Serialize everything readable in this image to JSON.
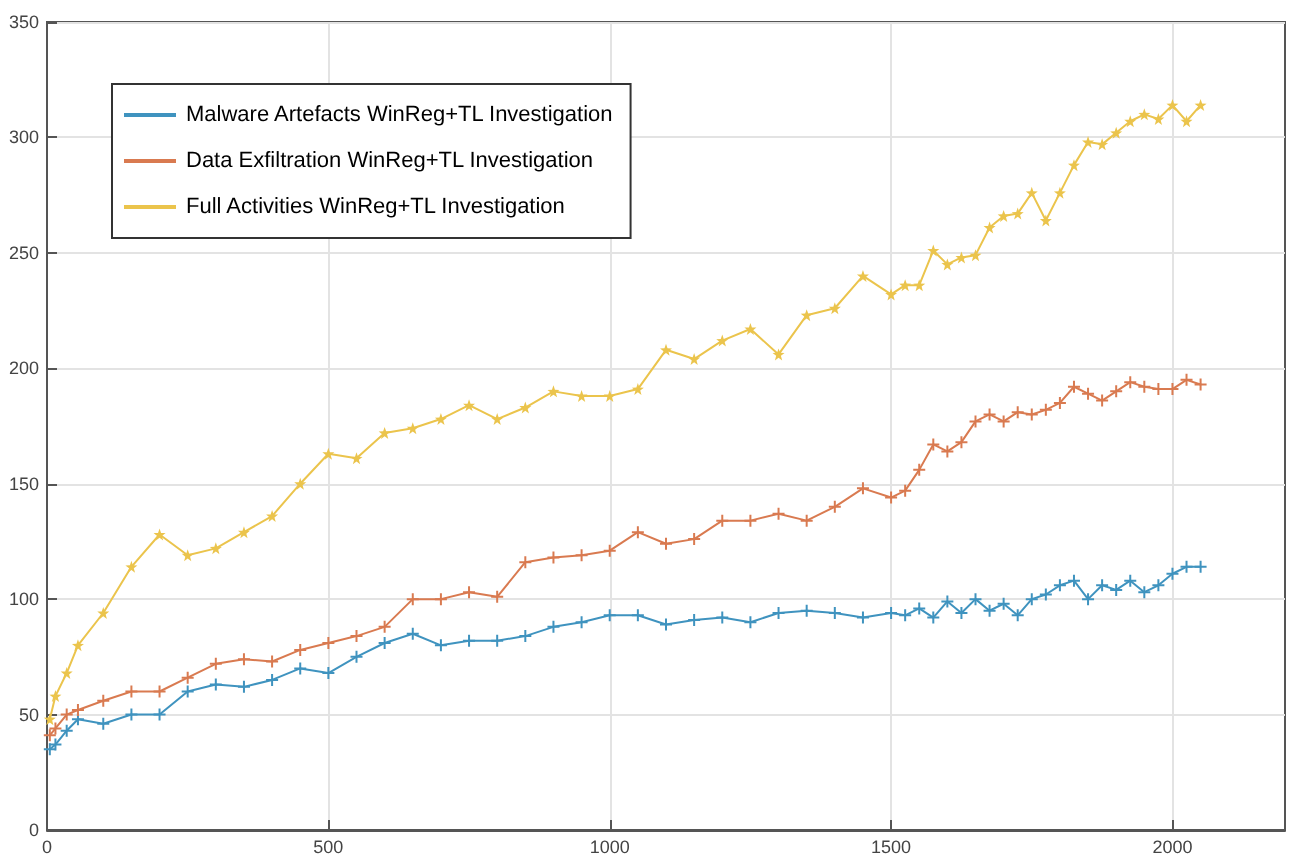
{
  "chart_data": {
    "type": "line",
    "x": [
      5,
      15,
      35,
      55,
      100,
      150,
      200,
      250,
      300,
      350,
      400,
      450,
      500,
      550,
      600,
      650,
      700,
      750,
      800,
      850,
      900,
      950,
      1000,
      1050,
      1100,
      1150,
      1200,
      1250,
      1300,
      1350,
      1400,
      1450,
      1500,
      1525,
      1550,
      1575,
      1600,
      1625,
      1650,
      1675,
      1700,
      1725,
      1750,
      1775,
      1800,
      1825,
      1850,
      1875,
      1900,
      1925,
      1950,
      1975,
      2000,
      2025,
      2050
    ],
    "series": [
      {
        "name": "Malware Artefacts WinReg+TL Investigation",
        "color": "#3f93bf",
        "marker": "cross",
        "values": [
          35,
          37,
          43,
          48,
          46,
          50,
          50,
          60,
          63,
          62,
          65,
          70,
          68,
          75,
          81,
          85,
          80,
          82,
          82,
          84,
          88,
          90,
          93,
          93,
          89,
          91,
          92,
          90,
          94,
          95,
          94,
          92,
          94,
          93,
          96,
          92,
          99,
          94,
          100,
          95,
          98,
          93,
          100,
          102,
          106,
          108,
          100,
          106,
          104,
          108,
          103,
          106,
          111,
          114,
          114
        ]
      },
      {
        "name": "Data Exfiltration WinReg+TL Investigation",
        "color": "#d97a50",
        "marker": "cross",
        "values": [
          41,
          44,
          50,
          52,
          56,
          60,
          60,
          66,
          72,
          74,
          73,
          78,
          81,
          84,
          88,
          100,
          100,
          103,
          101,
          116,
          118,
          119,
          121,
          129,
          124,
          126,
          134,
          134,
          137,
          134,
          140,
          148,
          144,
          147,
          156,
          167,
          164,
          168,
          177,
          180,
          177,
          181,
          180,
          182,
          185,
          192,
          189,
          186,
          190,
          194,
          192,
          191,
          191,
          195,
          193
        ]
      },
      {
        "name": "Full Activities WinReg+TL Investigation",
        "color": "#ebc44c",
        "marker": "star",
        "values": [
          48,
          58,
          68,
          80,
          94,
          114,
          128,
          119,
          122,
          129,
          136,
          150,
          163,
          161,
          172,
          174,
          178,
          184,
          178,
          183,
          190,
          188,
          188,
          191,
          208,
          204,
          212,
          217,
          206,
          223,
          226,
          240,
          232,
          236,
          236,
          251,
          245,
          248,
          249,
          261,
          266,
          267,
          276,
          264,
          276,
          288,
          298,
          297,
          302,
          307,
          310,
          308,
          314,
          307,
          314
        ]
      }
    ],
    "xlim": [
      0,
      2200
    ],
    "xticks": [
      0,
      500,
      1000,
      1500,
      2000
    ],
    "ylim": [
      0,
      350
    ],
    "yticks": [
      0,
      50,
      100,
      150,
      200,
      250,
      300,
      350
    ],
    "grid": true,
    "legend": "top left"
  }
}
